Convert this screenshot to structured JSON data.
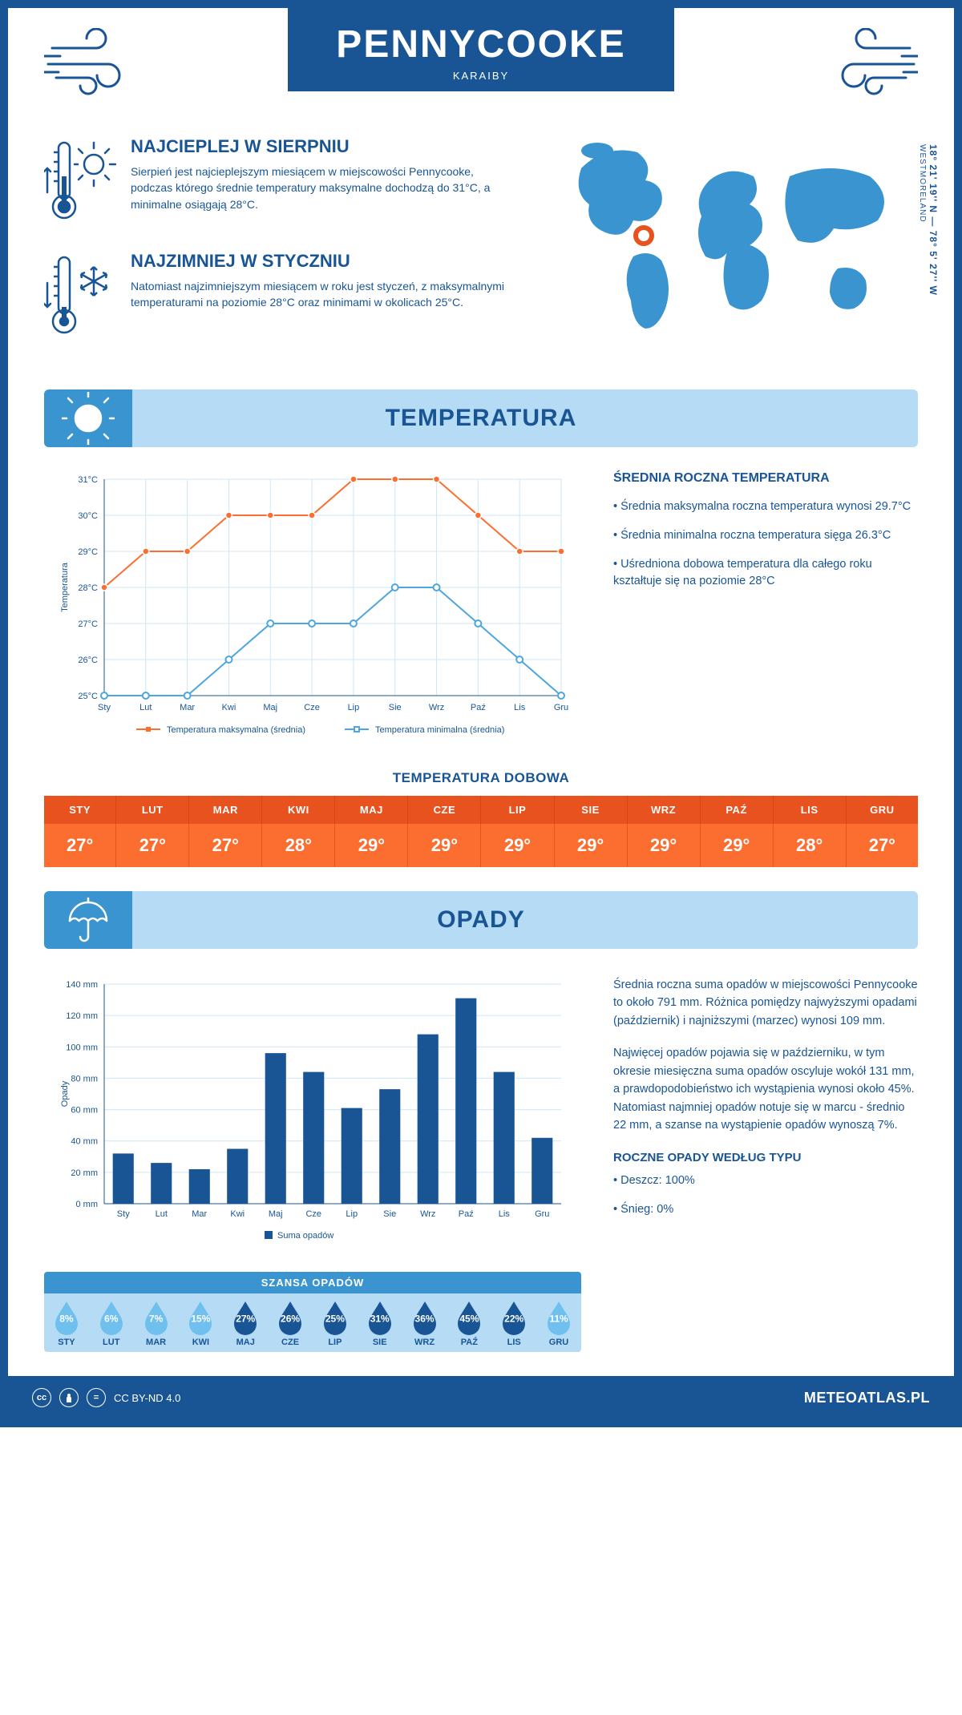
{
  "header": {
    "city": "PENNYCOOKE",
    "region": "KARAIBY"
  },
  "coords": {
    "lat": "18° 21' 19'' N",
    "lon": "78° 5' 27'' W",
    "admin": "WESTMORELAND"
  },
  "facts": {
    "warm": {
      "title": "NAJCIEPLEJ W SIERPNIU",
      "text": "Sierpień jest najcieplejszym miesiącem w miejscowości Pennycooke, podczas którego średnie temperatury maksymalne dochodzą do 31°C, a minimalne osiągają 28°C."
    },
    "cold": {
      "title": "NAJZIMNIEJ W STYCZNIU",
      "text": "Natomiast najzimniejszym miesiącem w roku jest styczeń, z maksymalnymi temperaturami na poziomie 28°C oraz minimami w okolicach 25°C."
    }
  },
  "sections": {
    "temperature": "TEMPERATURA",
    "precipitation": "OPADY"
  },
  "months_short": [
    "Sty",
    "Lut",
    "Mar",
    "Kwi",
    "Maj",
    "Cze",
    "Lip",
    "Sie",
    "Wrz",
    "Paź",
    "Lis",
    "Gru"
  ],
  "months_upper": [
    "STY",
    "LUT",
    "MAR",
    "KWI",
    "MAJ",
    "CZE",
    "LIP",
    "SIE",
    "WRZ",
    "PAŹ",
    "LIS",
    "GRU"
  ],
  "temp_chart": {
    "type": "line",
    "y_axis_label": "Temperatura",
    "ylim": [
      25,
      31
    ],
    "ytick_step": 1,
    "y_unit": "°C",
    "series_max": {
      "label": "Temperatura maksymalna (średnia)",
      "color": "#fc6e30",
      "values": [
        28,
        29,
        29,
        30,
        30,
        30,
        31,
        31,
        31,
        30,
        29,
        29
      ]
    },
    "series_min": {
      "label": "Temperatura minimalna (średnia)",
      "color": "#4da6e0",
      "values": [
        25,
        25,
        25,
        26,
        27,
        27,
        27,
        28,
        28,
        27,
        26,
        25
      ]
    },
    "grid_color": "#cfe6f5",
    "axis_color": "#195595",
    "background": "#ffffff"
  },
  "temp_side": {
    "title": "ŚREDNIA ROCZNA TEMPERATURA",
    "bullets": [
      "Średnia maksymalna roczna temperatura wynosi 29.7°C",
      "Średnia minimalna roczna temperatura sięga 26.3°C",
      "Uśredniona dobowa temperatura dla całego roku kształtuje się na poziomie 28°C"
    ]
  },
  "daily_temp": {
    "title": "TEMPERATURA DOBOWA",
    "values": [
      "27°",
      "27°",
      "27°",
      "28°",
      "29°",
      "29°",
      "29°",
      "29°",
      "29°",
      "29°",
      "28°",
      "27°"
    ],
    "header_bg": "#e8521f",
    "cell_bg": "#fc6e30"
  },
  "precip_chart": {
    "type": "bar",
    "y_axis_label": "Opady",
    "ylim": [
      0,
      140
    ],
    "ytick_step": 20,
    "y_unit": " mm",
    "values": [
      32,
      26,
      22,
      35,
      96,
      84,
      61,
      73,
      108,
      131,
      84,
      42
    ],
    "bar_color": "#195595",
    "grid_color": "#cfe6f5",
    "legend": "Suma opadów"
  },
  "precip_side": {
    "p1": "Średnia roczna suma opadów w miejscowości Pennycooke to około 791 mm. Różnica pomiędzy najwyższymi opadami (październik) i najniższymi (marzec) wynosi 109 mm.",
    "p2": "Najwięcej opadów pojawia się w październiku, w tym okresie miesięczna suma opadów oscyluje wokół 131 mm, a prawdopodobieństwo ich wystąpienia wynosi około 45%. Natomiast najmniej opadów notuje się w marcu - średnio 22 mm, a szanse na wystąpienie opadów wynoszą 7%."
  },
  "chance": {
    "title": "SZANSA OPADÓW",
    "values": [
      8,
      6,
      7,
      15,
      27,
      26,
      25,
      31,
      36,
      45,
      22,
      11
    ],
    "light_color": "#6fc0ef",
    "dark_color": "#195595",
    "threshold": 20
  },
  "precip_type": {
    "title": "ROCZNE OPADY WEDŁUG TYPU",
    "lines": [
      "Deszcz: 100%",
      "Śnieg: 0%"
    ]
  },
  "footer": {
    "license": "CC BY-ND 4.0",
    "brand": "METEOATLAS.PL"
  },
  "colors": {
    "primary": "#195595",
    "banner_light": "#b5dbf5",
    "banner_mid": "#3a94d0",
    "orange": "#fc6e30",
    "orange_dark": "#e8521f"
  }
}
